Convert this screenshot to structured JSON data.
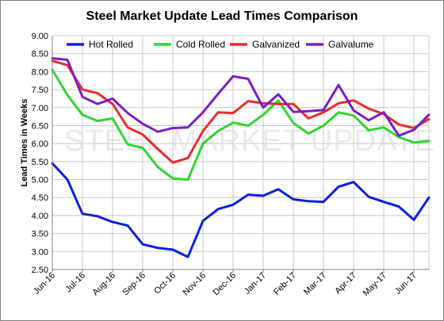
{
  "chart_data": {
    "type": "line",
    "title": "Steel Market Update Lead Times Comparison",
    "ylabel": "Lead Times in Weeks",
    "xlabel": "",
    "ylim": [
      2.5,
      9.0
    ],
    "yticks": [
      "9.00",
      "8.50",
      "8.00",
      "7.50",
      "7.00",
      "6.50",
      "6.00",
      "5.50",
      "5.00",
      "4.50",
      "4.00",
      "3.50",
      "3.00",
      "2.50"
    ],
    "xticks": [
      "Jun-16",
      "Jul-16",
      "Aug-16",
      "Sep-16",
      "Oct-16",
      "Nov-16",
      "Dec-16",
      "Jan-17",
      "Feb-17",
      "Mar-17",
      "Apr-17",
      "May-17",
      "Jun-17"
    ],
    "grid": true,
    "legend_position": "top",
    "watermark": "STEEL MARKET UPDATE",
    "series": [
      {
        "name": "Hot Rolled",
        "color": "#0a1ee6",
        "values": [
          5.45,
          5.0,
          4.05,
          3.98,
          3.82,
          3.72,
          3.2,
          3.1,
          3.05,
          2.85,
          3.85,
          4.18,
          4.3,
          4.58,
          4.55,
          4.73,
          4.45,
          4.4,
          4.38,
          4.8,
          4.93,
          4.52,
          4.38,
          4.25,
          3.88,
          4.5
        ]
      },
      {
        "name": "Cold Rolled",
        "color": "#2ed62e",
        "values": [
          8.05,
          7.35,
          6.8,
          6.63,
          6.7,
          5.98,
          5.88,
          5.35,
          5.03,
          5.0,
          6.0,
          6.35,
          6.58,
          6.5,
          6.8,
          7.2,
          6.57,
          6.28,
          6.5,
          6.87,
          6.78,
          6.37,
          6.45,
          6.18,
          6.03,
          6.07
        ]
      },
      {
        "name": "Galvanized",
        "color": "#ee2a2a",
        "values": [
          8.3,
          8.18,
          7.5,
          7.4,
          7.1,
          6.45,
          6.25,
          5.85,
          5.47,
          5.6,
          6.35,
          6.87,
          6.85,
          7.18,
          7.12,
          7.1,
          7.1,
          6.7,
          6.87,
          7.12,
          7.2,
          6.97,
          6.82,
          6.53,
          6.43,
          6.68
        ]
      },
      {
        "name": "Galvalume",
        "color": "#7a1ec2",
        "values": [
          8.37,
          8.33,
          7.3,
          7.1,
          7.25,
          6.85,
          6.55,
          6.33,
          6.43,
          6.45,
          6.87,
          7.38,
          7.87,
          7.8,
          7.0,
          7.37,
          6.88,
          6.9,
          6.93,
          7.63,
          6.92,
          6.65,
          6.87,
          6.22,
          6.38,
          6.8
        ]
      }
    ]
  }
}
